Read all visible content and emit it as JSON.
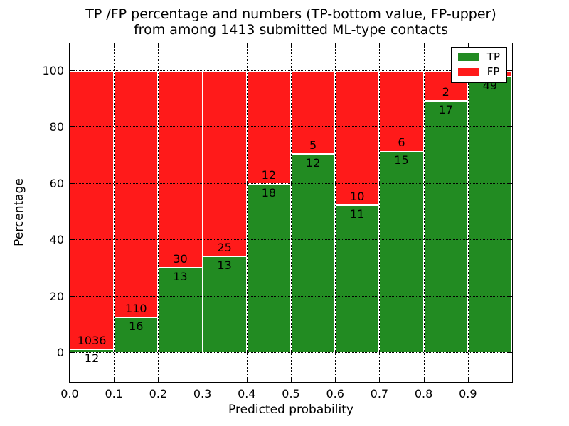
{
  "title": {
    "line1": "TP /FP percentage and numbers (TP-bottom value, FP-upper)",
    "line2": "from among 1413 submitted ML-type contacts"
  },
  "colors": {
    "tp": "#228B22",
    "fp": "#ff1a1a",
    "grid": "#000000",
    "frame": "#000000",
    "background": "#ffffff"
  },
  "chart_data": {
    "type": "bar",
    "stacked": true,
    "normalized": "percent_of_bin_total",
    "title": "TP /FP percentage and numbers (TP-bottom value, FP-upper) from among 1413 submitted ML-type contacts",
    "xlabel": "Predicted probability",
    "ylabel": "Percentage",
    "total_contacts_in_title": 1413,
    "x_tick_labels": [
      "0.0",
      "0.1",
      "0.2",
      "0.3",
      "0.4",
      "0.5",
      "0.6",
      "0.7",
      "0.8",
      "0.9"
    ],
    "y_ticks": [
      0,
      20,
      40,
      60,
      80,
      100
    ],
    "xlim": [
      0.0,
      1.0
    ],
    "ylim": [
      -10.3,
      109.8
    ],
    "bin_width": 0.1,
    "grid": "dotted",
    "legend_position": "upper right",
    "categories": [
      "0.0-0.1",
      "0.1-0.2",
      "0.2-0.3",
      "0.3-0.4",
      "0.4-0.5",
      "0.5-0.6",
      "0.6-0.7",
      "0.7-0.8",
      "0.8-0.9",
      "0.9-1.0"
    ],
    "series": [
      {
        "name": "TP",
        "color": "#228B22",
        "values": [
          12,
          16,
          13,
          13,
          18,
          12,
          11,
          15,
          17,
          49
        ]
      },
      {
        "name": "FP",
        "color": "#ff1a1a",
        "values": [
          1036,
          110,
          30,
          25,
          12,
          5,
          10,
          6,
          2,
          1
        ]
      }
    ],
    "bars": [
      {
        "range": "0.0-0.1",
        "tp": 12,
        "fp": 1036,
        "tp_label": "12",
        "fp_label": "1036"
      },
      {
        "range": "0.1-0.2",
        "tp": 16,
        "fp": 110,
        "tp_label": "16",
        "fp_label": "110"
      },
      {
        "range": "0.2-0.3",
        "tp": 13,
        "fp": 30,
        "tp_label": "13",
        "fp_label": "30"
      },
      {
        "range": "0.3-0.4",
        "tp": 13,
        "fp": 25,
        "tp_label": "13",
        "fp_label": "25"
      },
      {
        "range": "0.4-0.5",
        "tp": 18,
        "fp": 12,
        "tp_label": "18",
        "fp_label": "12"
      },
      {
        "range": "0.5-0.6",
        "tp": 12,
        "fp": 5,
        "tp_label": "12",
        "fp_label": "5"
      },
      {
        "range": "0.6-0.7",
        "tp": 11,
        "fp": 10,
        "tp_label": "11",
        "fp_label": "10"
      },
      {
        "range": "0.7-0.8",
        "tp": 15,
        "fp": 6,
        "tp_label": "15",
        "fp_label": "6"
      },
      {
        "range": "0.8-0.9",
        "tp": 17,
        "fp": 2,
        "tp_label": "17",
        "fp_label": "2"
      },
      {
        "range": "0.9-1.0",
        "tp": 49,
        "fp": 1,
        "tp_label": "49",
        "fp_label": ""
      }
    ]
  }
}
